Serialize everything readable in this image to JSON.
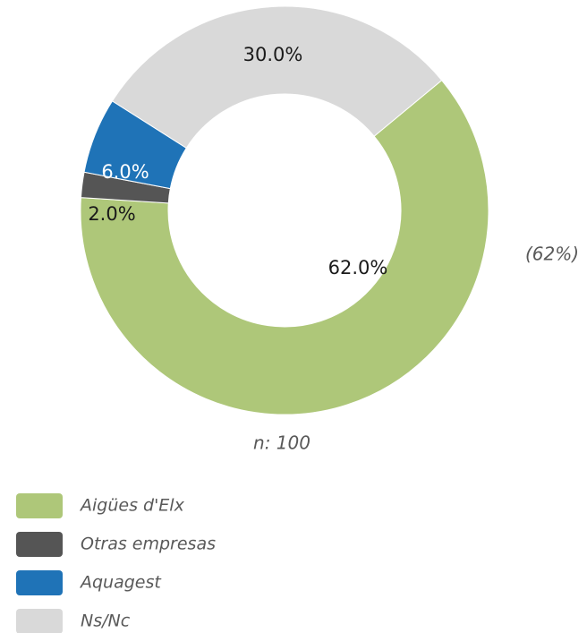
{
  "chart_data": {
    "type": "donut",
    "categories": [
      "Aigües d'Elx",
      "Otras empresas",
      "Aquagest",
      "Ns/Nc"
    ],
    "values": [
      62,
      2,
      6,
      30
    ],
    "value_labels": [
      "62.0%",
      "2.0%",
      "6.0%",
      "30.0%"
    ],
    "colors": [
      "#aec779",
      "#555555",
      "#1f73b7",
      "#d9d9d9"
    ],
    "annotations": [
      "(62%)",
      "n: 100"
    ]
  }
}
